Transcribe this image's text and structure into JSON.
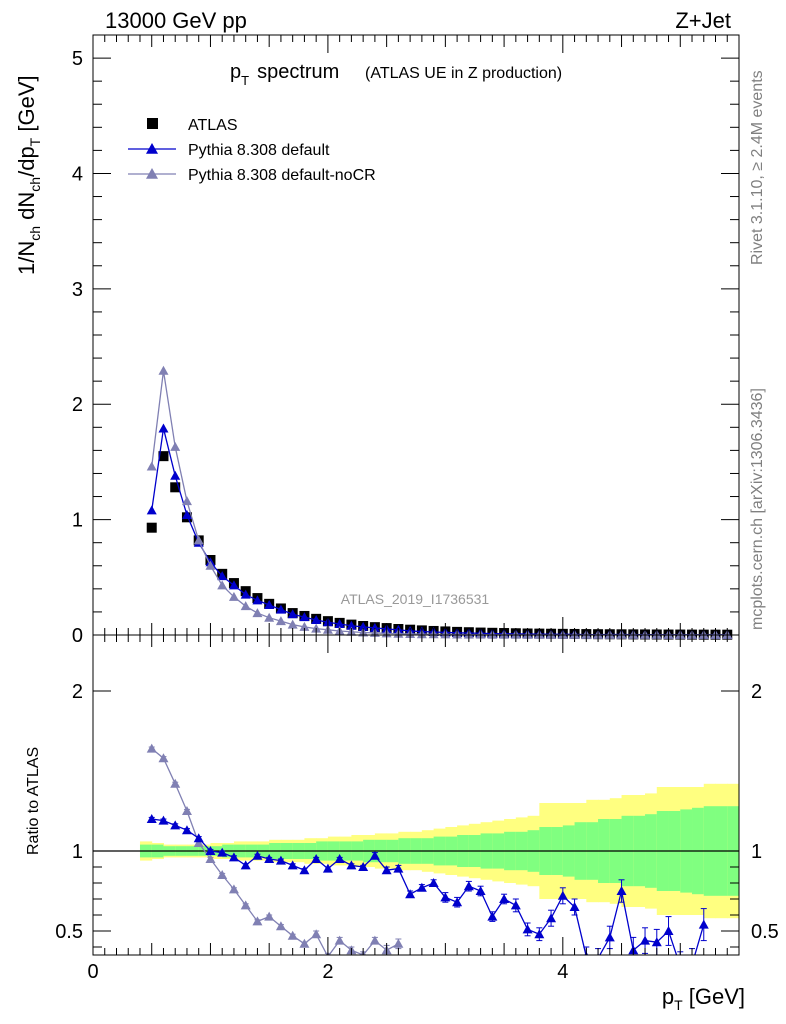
{
  "header": {
    "left": "13000 GeV pp",
    "right": "Z+Jet"
  },
  "side": {
    "rivet": "Rivet 3.1.10, ≥ 2.4M events",
    "mcplots": "mcplots.cern.ch [arXiv:1306.3436]"
  },
  "chart_data": [
    {
      "type": "scatter",
      "title_main": "p",
      "title_sub": "T",
      "title_rest": "spectrum",
      "title_paren": "(ATLAS UE in Z production)",
      "watermark": "ATLAS_2019_I1736531",
      "ylabel": "1/N_ch dN_ch/dp_T [GeV]",
      "ylim": [
        0,
        5.2
      ],
      "xlim": [
        0,
        5.5
      ],
      "yticks": [
        "0",
        "1",
        "2",
        "3",
        "4",
        "5"
      ],
      "series": [
        {
          "name": "ATLAS",
          "color": "#000000",
          "marker": "square",
          "x": [
            0.5,
            0.6,
            0.7,
            0.8,
            0.9,
            1.0,
            1.1,
            1.2,
            1.3,
            1.4,
            1.5,
            1.6,
            1.7,
            1.8,
            1.9,
            2.0,
            2.1,
            2.2,
            2.3,
            2.4,
            2.5,
            2.6,
            2.7,
            2.8,
            2.9,
            3.0,
            3.1,
            3.2,
            3.3,
            3.4,
            3.5,
            3.6,
            3.7,
            3.8,
            3.9,
            4.0,
            4.1,
            4.2,
            4.3,
            4.4,
            4.5,
            4.6,
            4.7,
            4.8,
            4.9,
            5.0,
            5.1,
            5.2,
            5.3,
            5.4
          ],
          "values": [
            0.93,
            1.55,
            1.28,
            1.02,
            0.82,
            0.65,
            0.53,
            0.45,
            0.38,
            0.32,
            0.27,
            0.23,
            0.19,
            0.165,
            0.14,
            0.12,
            0.105,
            0.09,
            0.078,
            0.068,
            0.06,
            0.052,
            0.046,
            0.04,
            0.035,
            0.031,
            0.027,
            0.024,
            0.021,
            0.019,
            0.017,
            0.015,
            0.013,
            0.012,
            0.011,
            0.01,
            0.009,
            0.008,
            0.007,
            0.0065,
            0.006,
            0.0055,
            0.005,
            0.0045,
            0.004,
            0.0038,
            0.0035,
            0.0032,
            0.003,
            0.0028
          ]
        },
        {
          "name": "Pythia 8.308 default",
          "color": "#0000cc",
          "marker": "triangle",
          "x": [
            0.5,
            0.6,
            0.7,
            0.8,
            0.9,
            1.0,
            1.1,
            1.2,
            1.3,
            1.4,
            1.5,
            1.6,
            1.7,
            1.8,
            1.9,
            2.0,
            2.1,
            2.2,
            2.3,
            2.4,
            2.5,
            2.6,
            2.7,
            2.8,
            2.9,
            3.0,
            3.1,
            3.2,
            3.3,
            3.4,
            3.5,
            3.6,
            3.7,
            3.8,
            3.9,
            4.0,
            4.1,
            4.2,
            4.3,
            4.4,
            4.5,
            4.6,
            4.7,
            4.8,
            4.9,
            5.0,
            5.1,
            5.2,
            5.3,
            5.4
          ],
          "values": [
            1.08,
            1.79,
            1.38,
            1.04,
            0.8,
            0.63,
            0.51,
            0.43,
            0.35,
            0.3,
            0.26,
            0.22,
            0.18,
            0.155,
            0.13,
            0.11,
            0.095,
            0.08,
            0.07,
            0.062,
            0.052,
            0.045,
            0.035,
            0.03,
            0.026,
            0.022,
            0.019,
            0.017,
            0.015,
            0.012,
            0.011,
            0.009,
            0.008,
            0.007,
            0.006,
            0.006,
            0.005,
            0.003,
            0.003,
            0.004,
            0.004,
            0.003,
            0.003,
            0.003,
            0.002,
            0.002,
            0.002,
            0.0015,
            0.0015,
            0.0015
          ]
        },
        {
          "name": "Pythia 8.308 default-noCR",
          "color": "#8080b3",
          "marker": "triangle",
          "x": [
            0.5,
            0.6,
            0.7,
            0.8,
            0.9,
            1.0,
            1.1,
            1.2,
            1.3,
            1.4,
            1.5,
            1.6,
            1.7,
            1.8,
            1.9,
            2.0,
            2.1,
            2.2,
            2.3,
            2.4,
            2.5,
            2.6,
            2.7,
            2.8,
            2.9,
            3.0,
            3.1,
            3.2,
            3.3,
            3.4,
            3.5,
            3.6,
            3.7,
            3.8,
            3.9,
            4.0,
            4.1,
            4.2,
            4.3,
            4.4,
            4.5,
            4.6,
            4.7,
            4.8,
            4.9,
            5.0,
            5.1,
            5.2,
            5.3,
            5.4
          ],
          "values": [
            1.46,
            2.29,
            1.63,
            1.16,
            0.82,
            0.6,
            0.43,
            0.33,
            0.25,
            0.19,
            0.15,
            0.12,
            0.09,
            0.07,
            0.055,
            0.045,
            0.035,
            0.028,
            0.022,
            0.018,
            0.014,
            0.011,
            0.009,
            0.007,
            0.006,
            0.005,
            0.004,
            0.003,
            0.003,
            0.002,
            0.002,
            0.002,
            0.001,
            0.001,
            0.001,
            0.001,
            0.001,
            0.001,
            0.001,
            0.001,
            0.001,
            0.001,
            0.001,
            0.001,
            0.001,
            0.001,
            0.001,
            0.001,
            0.001,
            0.001
          ]
        }
      ]
    },
    {
      "type": "line",
      "ylabel": "Ratio to ATLAS",
      "xlabel": "p_T [GeV]",
      "ylim": [
        0.35,
        2.35
      ],
      "xlim": [
        0,
        5.5
      ],
      "yticks": [
        "0.5",
        "1",
        "2"
      ],
      "xticks": [
        "0",
        "2",
        "4"
      ],
      "reference": 1.0,
      "bands": {
        "x": [
          0.45,
          0.55,
          0.65,
          0.75,
          0.85,
          0.95,
          1.05,
          1.15,
          1.25,
          1.35,
          1.45,
          1.55,
          1.65,
          1.75,
          1.85,
          1.95,
          2.05,
          2.15,
          2.25,
          2.35,
          2.45,
          2.55,
          2.65,
          2.75,
          2.85,
          2.95,
          3.05,
          3.15,
          3.25,
          3.35,
          3.45,
          3.55,
          3.65,
          3.75,
          3.85,
          3.95,
          4.05,
          4.15,
          4.25,
          4.35,
          4.45,
          4.55,
          4.65,
          4.75,
          4.85,
          4.95,
          5.05,
          5.15,
          5.25,
          5.35,
          5.45
        ],
        "stat_halfwidth": [
          0.04,
          0.04,
          0.03,
          0.03,
          0.03,
          0.03,
          0.03,
          0.04,
          0.04,
          0.04,
          0.04,
          0.05,
          0.05,
          0.05,
          0.05,
          0.06,
          0.06,
          0.06,
          0.06,
          0.07,
          0.07,
          0.07,
          0.08,
          0.08,
          0.08,
          0.09,
          0.09,
          0.1,
          0.1,
          0.11,
          0.11,
          0.12,
          0.12,
          0.13,
          0.15,
          0.15,
          0.16,
          0.18,
          0.18,
          0.2,
          0.2,
          0.22,
          0.22,
          0.23,
          0.25,
          0.25,
          0.26,
          0.27,
          0.28,
          0.28,
          0.28
        ],
        "syst_halfwidth": [
          0.06,
          0.05,
          0.04,
          0.04,
          0.04,
          0.04,
          0.05,
          0.05,
          0.06,
          0.06,
          0.06,
          0.07,
          0.07,
          0.07,
          0.08,
          0.08,
          0.09,
          0.09,
          0.1,
          0.1,
          0.11,
          0.11,
          0.12,
          0.12,
          0.13,
          0.14,
          0.15,
          0.16,
          0.17,
          0.18,
          0.19,
          0.2,
          0.21,
          0.22,
          0.3,
          0.3,
          0.3,
          0.3,
          0.32,
          0.32,
          0.33,
          0.35,
          0.35,
          0.36,
          0.4,
          0.4,
          0.4,
          0.4,
          0.42,
          0.42,
          0.42
        ]
      },
      "series": [
        {
          "name": "Pythia 8.308 default",
          "color": "#0000cc",
          "x": [
            0.5,
            0.6,
            0.7,
            0.8,
            0.9,
            1.0,
            1.1,
            1.2,
            1.3,
            1.4,
            1.5,
            1.6,
            1.7,
            1.8,
            1.9,
            2.0,
            2.1,
            2.2,
            2.3,
            2.4,
            2.5,
            2.6,
            2.7,
            2.8,
            2.9,
            3.0,
            3.1,
            3.2,
            3.3,
            3.4,
            3.5,
            3.6,
            3.7,
            3.8,
            3.9,
            4.0,
            4.1,
            4.2,
            4.3,
            4.4,
            4.5,
            4.6,
            4.7,
            4.8,
            4.9,
            5.0,
            5.1,
            5.2
          ],
          "values": [
            1.2,
            1.19,
            1.16,
            1.13,
            1.08,
            1.0,
            0.99,
            0.96,
            0.91,
            0.97,
            0.95,
            0.94,
            0.91,
            0.88,
            0.95,
            0.89,
            0.95,
            0.91,
            0.9,
            0.97,
            0.88,
            0.89,
            0.73,
            0.77,
            0.8,
            0.71,
            0.68,
            0.78,
            0.75,
            0.59,
            0.7,
            0.66,
            0.51,
            0.48,
            0.58,
            0.72,
            0.65,
            0.34,
            0.33,
            0.46,
            0.75,
            0.38,
            0.44,
            0.43,
            0.5,
            0.28,
            0.29,
            0.54
          ],
          "errors": [
            0.01,
            0.01,
            0.01,
            0.01,
            0.01,
            0.01,
            0.01,
            0.01,
            0.01,
            0.01,
            0.01,
            0.01,
            0.01,
            0.01,
            0.01,
            0.01,
            0.01,
            0.01,
            0.01,
            0.02,
            0.02,
            0.02,
            0.02,
            0.02,
            0.02,
            0.03,
            0.03,
            0.03,
            0.03,
            0.03,
            0.03,
            0.04,
            0.04,
            0.04,
            0.05,
            0.05,
            0.05,
            0.06,
            0.06,
            0.07,
            0.07,
            0.08,
            0.08,
            0.08,
            0.09,
            0.09,
            0.1,
            0.1
          ]
        },
        {
          "name": "Pythia 8.308 default-noCR",
          "color": "#8080b3",
          "x": [
            0.5,
            0.6,
            0.7,
            0.8,
            0.9,
            1.0,
            1.1,
            1.2,
            1.3,
            1.4,
            1.5,
            1.6,
            1.7,
            1.8,
            1.9,
            2.0,
            2.1,
            2.2,
            2.3,
            2.4,
            2.5,
            2.6
          ],
          "values": [
            1.64,
            1.58,
            1.42,
            1.25,
            1.05,
            0.95,
            0.85,
            0.76,
            0.66,
            0.56,
            0.59,
            0.53,
            0.47,
            0.42,
            0.48,
            0.34,
            0.44,
            0.38,
            0.35,
            0.44,
            0.38,
            0.42
          ],
          "errors": [
            0.01,
            0.01,
            0.01,
            0.01,
            0.01,
            0.01,
            0.01,
            0.01,
            0.01,
            0.01,
            0.01,
            0.01,
            0.01,
            0.01,
            0.02,
            0.02,
            0.02,
            0.02,
            0.02,
            0.02,
            0.03,
            0.03
          ]
        }
      ]
    }
  ]
}
